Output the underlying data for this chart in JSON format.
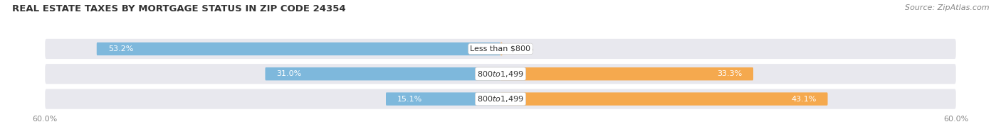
{
  "title": "REAL ESTATE TAXES BY MORTGAGE STATUS IN ZIP CODE 24354",
  "source": "Source: ZipAtlas.com",
  "rows": [
    {
      "label": "Less than $800",
      "without": 53.2,
      "with": 0.24
    },
    {
      "label": "$800 to $1,499",
      "without": 31.0,
      "with": 33.3
    },
    {
      "label": "$800 to $1,499",
      "without": 15.1,
      "with": 43.1
    }
  ],
  "xlim": 60.0,
  "color_without": "#7eb8dc",
  "color_with": "#f5a94e",
  "color_without_light": "#b8d8ee",
  "row_bg_color": "#e8e8ee",
  "bar_height": 0.52,
  "title_fontsize": 9.5,
  "label_fontsize": 8.0,
  "axis_fontsize": 8.0,
  "legend_fontsize": 8.5,
  "source_fontsize": 8.0,
  "background_color": "#ffffff"
}
